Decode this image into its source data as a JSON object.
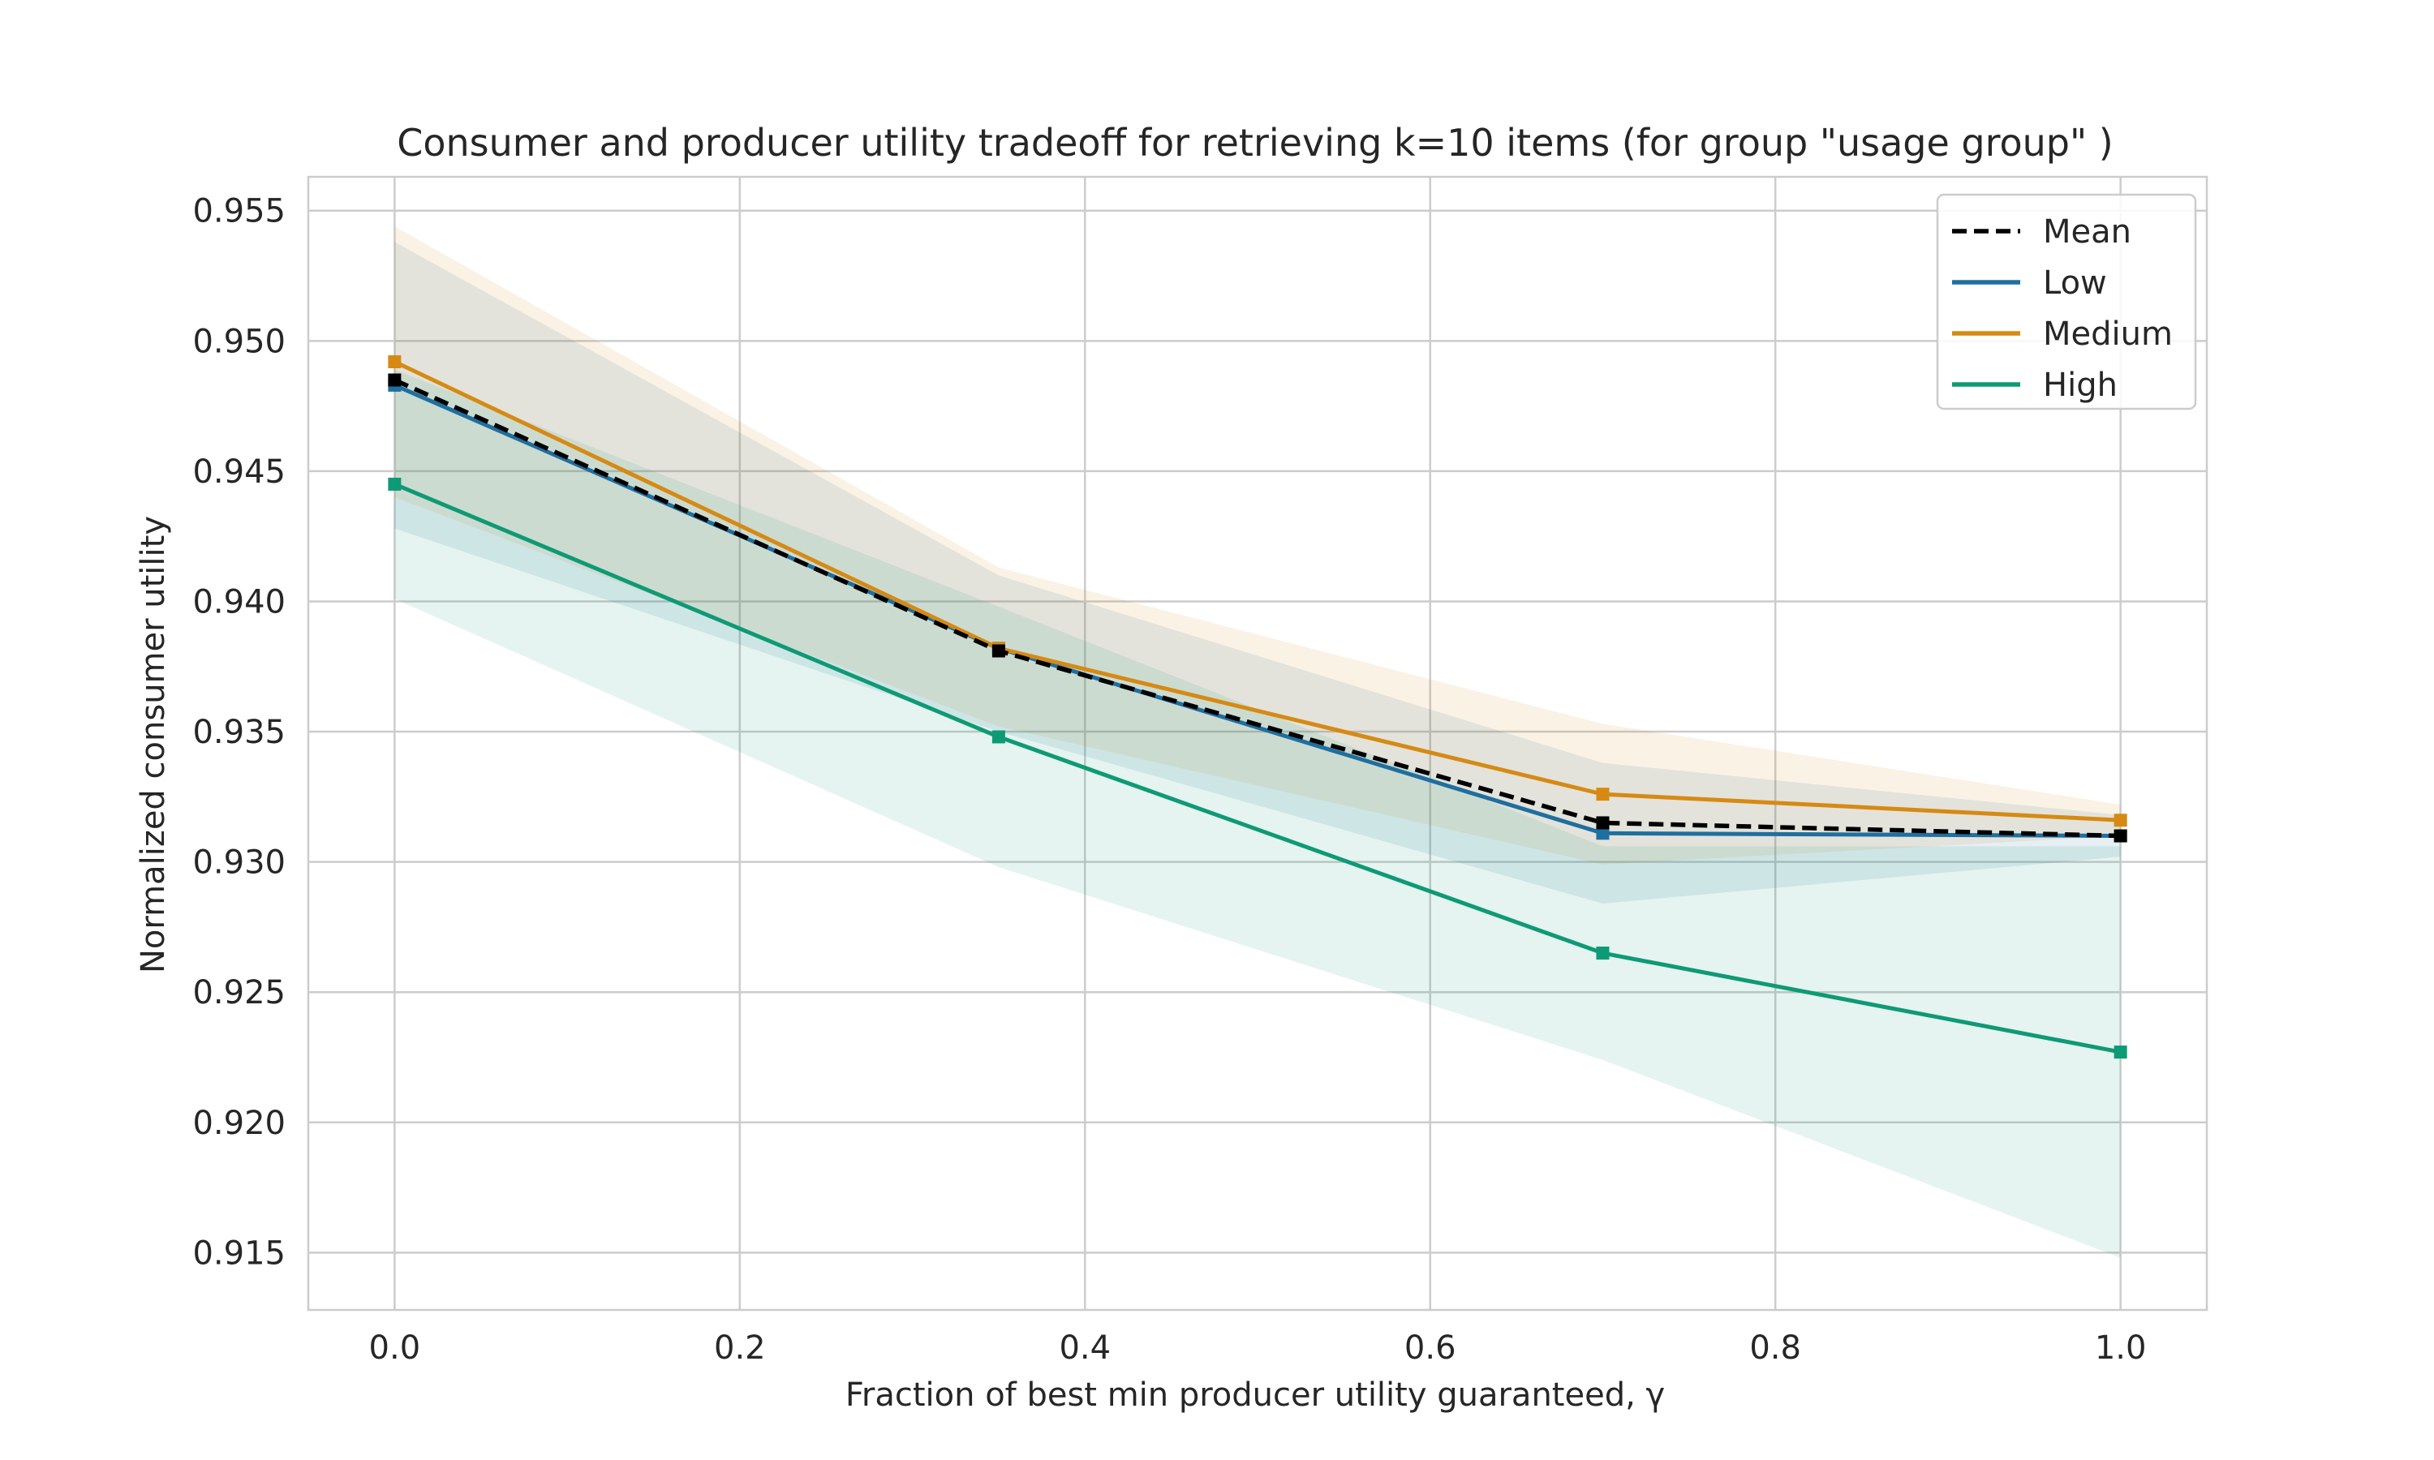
{
  "chart_data": {
    "type": "line",
    "title": "Consumer and producer utility tradeoff for retrieving k=10 items (for group \"usage group\" )",
    "xlabel": "Fraction of best min producer utility guaranteed, γ",
    "ylabel": "Normalized consumer utility",
    "x": [
      0.0,
      0.35,
      0.7,
      1.0
    ],
    "xlim": [
      -0.05,
      1.05
    ],
    "ylim": [
      0.9128,
      0.9563
    ],
    "xticks": [
      "0.0",
      "0.2",
      "0.4",
      "0.6",
      "0.8",
      "1.0"
    ],
    "yticks": [
      "0.915",
      "0.920",
      "0.925",
      "0.930",
      "0.935",
      "0.940",
      "0.945",
      "0.950",
      "0.955"
    ],
    "grid": true,
    "legend_position": "top-right",
    "series": [
      {
        "name": "Mean",
        "values": [
          0.9485,
          0.9381,
          0.9315,
          0.931
        ],
        "color": "#000000",
        "dashed": true,
        "band": null
      },
      {
        "name": "Low",
        "values": [
          0.9483,
          0.9382,
          0.9311,
          0.931
        ],
        "color": "#1f6f9f",
        "dashed": false,
        "band": {
          "lower": [
            0.9428,
            0.935,
            0.9284,
            0.9302
          ],
          "upper": [
            0.9538,
            0.941,
            0.9338,
            0.9318
          ]
        }
      },
      {
        "name": "Medium",
        "values": [
          0.9492,
          0.9382,
          0.9326,
          0.9316
        ],
        "color": "#d68a14",
        "dashed": false,
        "band": {
          "lower": [
            0.944,
            0.9352,
            0.9299,
            0.931
          ],
          "upper": [
            0.9544,
            0.9413,
            0.9353,
            0.9322
          ]
        }
      },
      {
        "name": "High",
        "values": [
          0.9445,
          0.9348,
          0.9265,
          0.9227
        ],
        "color": "#0e9a74",
        "dashed": false,
        "band": {
          "lower": [
            0.9401,
            0.9298,
            0.9224,
            0.9148
          ],
          "upper": [
            0.9489,
            0.9398,
            0.9306,
            0.9306
          ]
        }
      }
    ]
  }
}
